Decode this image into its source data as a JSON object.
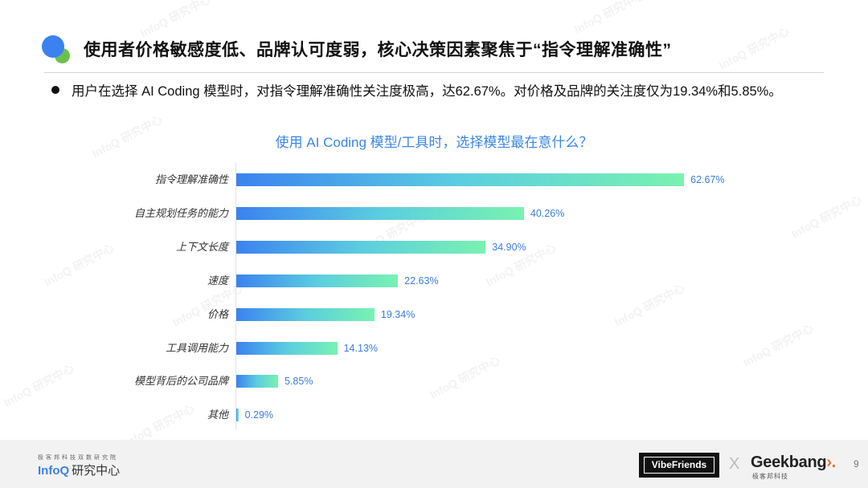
{
  "header": {
    "title": "使用者价格敏感度低、品牌认可度弱，核心决策因素聚焦于“指令理解准确性”",
    "summary": "用户在选择 AI Coding 模型时，对指令理解准确性关注度极高，达62.67%。对价格及品牌的关注度仅为19.34%和5.85%。"
  },
  "chart_data": {
    "type": "bar",
    "orientation": "horizontal",
    "title": "使用 AI Coding 模型/工具时，选择模型最在意什么？",
    "xlabel": "",
    "ylabel": "",
    "categories": [
      "指令理解准确性",
      "自主规划任务的能力",
      "上下文长度",
      "速度",
      "价格",
      "工具调用能力",
      "模型背后的公司品牌",
      "其他"
    ],
    "values": [
      62.67,
      40.26,
      34.9,
      22.63,
      19.34,
      14.13,
      5.85,
      0.29
    ],
    "value_labels": [
      "62.67%",
      "40.26%",
      "34.90%",
      "22.63%",
      "19.34%",
      "14.13%",
      "5.85%",
      "0.29%"
    ],
    "unit": "%",
    "grid": false,
    "legend": null,
    "bar_gradient": [
      "#3b82f0",
      "#5ccde0",
      "#79f2b0"
    ],
    "label_color": "#3b7ddd",
    "title_color": "#3b86e6"
  },
  "footer": {
    "infoq_subtitle": "极客邦科技双数研究院",
    "infoq_brand": "InfoQ",
    "infoq_brand_zh": "研究中心",
    "partner_logo": "VibeFriends",
    "cross": "X",
    "geekbang_brand": "Geekbang",
    "geekbang_sub": "极客邦科技",
    "page_number": "9"
  },
  "watermark": "InfoQ 研究中心"
}
